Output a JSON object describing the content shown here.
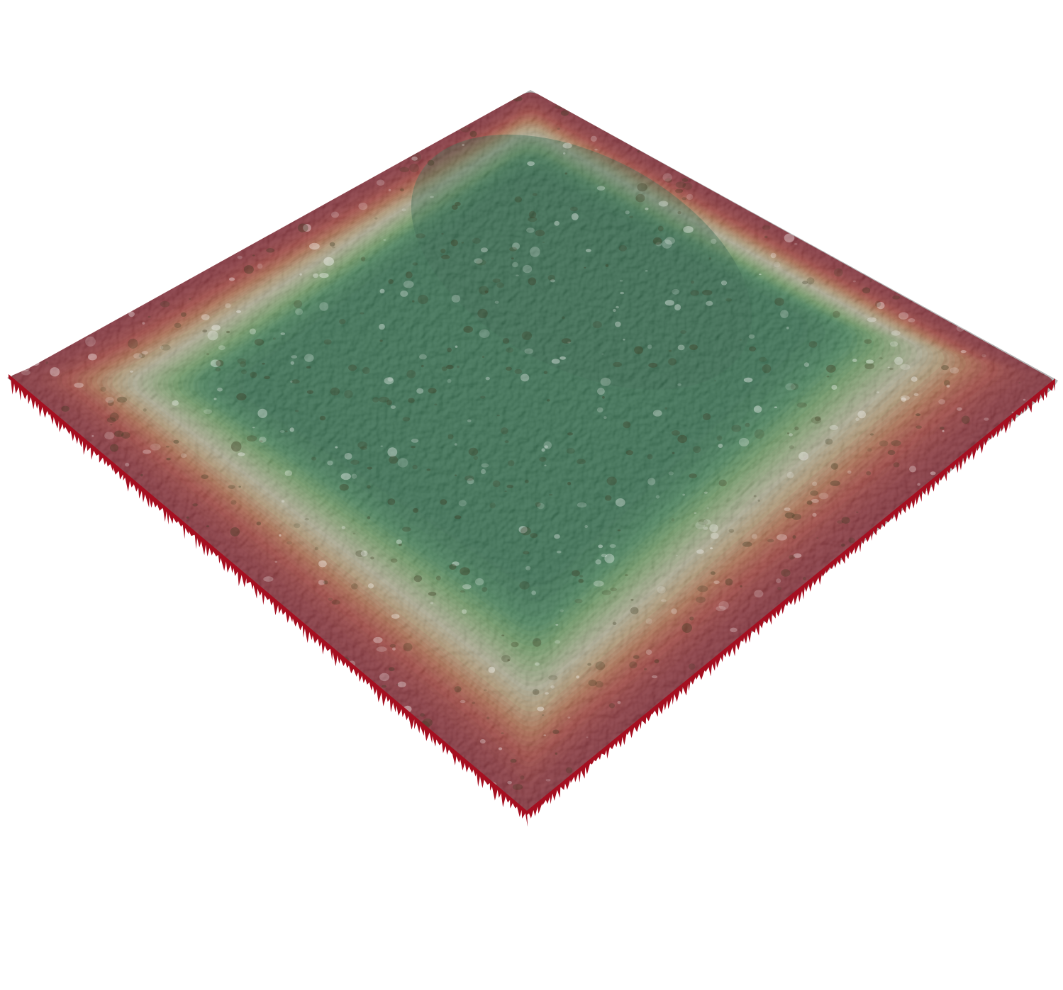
{
  "scene": {
    "type": "3d-surface-render",
    "background_color": "#ffffff",
    "colormap": {
      "name": "red-yellow-green",
      "stops": [
        "#a50f20",
        "#d9332a",
        "#f07a45",
        "#f6c98a",
        "#f3efc0",
        "#bfe29a",
        "#7ccb6c",
        "#3aa35c",
        "#1a7f48"
      ]
    },
    "surface": {
      "shape": "bowl",
      "edge_color": "#a50f20",
      "center_color": "#1a7f48",
      "rim_band_color": "#f3efc0",
      "texture": "speckled"
    }
  }
}
